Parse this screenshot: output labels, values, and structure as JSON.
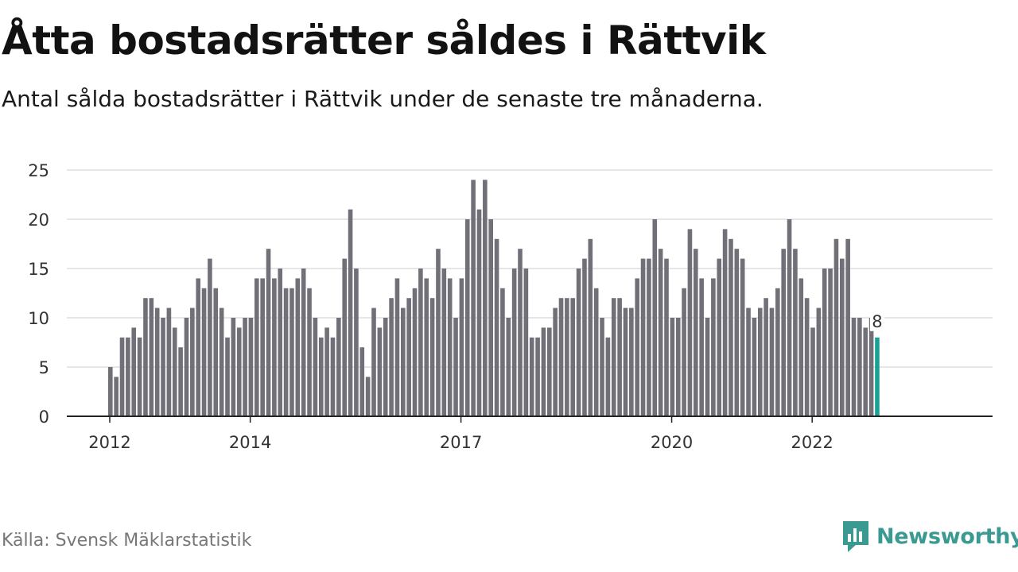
{
  "header": {
    "title": "Åtta bostadsrätter såldes i Rättvik",
    "subtitle": "Antal sålda bostadsrätter i Rättvik under de senaste tre månaderna."
  },
  "footer": {
    "source": "Källa: Svensk Mäklarstatistik",
    "brand": "Newsworthy",
    "brand_icon": "newsworthy-logo-icon"
  },
  "colors": {
    "bar": "#717078",
    "highlight": "#1aa197",
    "grid": "#dddddd",
    "axis": "#222222",
    "brand": "#3a9a92"
  },
  "chart_data": {
    "type": "bar",
    "title": "",
    "xlabel": "",
    "ylabel": "",
    "ylim": [
      0,
      25
    ],
    "yticks": [
      "0",
      "5",
      "10",
      "15",
      "20",
      "25"
    ],
    "xticks": [
      {
        "label": "2012",
        "month_index": 0
      },
      {
        "label": "2014",
        "month_index": 24
      },
      {
        "label": "2017",
        "month_index": 60
      },
      {
        "label": "2020",
        "month_index": 96
      },
      {
        "label": "2022",
        "month_index": 120
      }
    ],
    "grid": true,
    "period": "monthly, Jan 2012 – Oct 2022",
    "values": [
      5,
      4,
      8,
      8,
      9,
      8,
      12,
      12,
      11,
      10,
      11,
      9,
      7,
      10,
      11,
      14,
      13,
      16,
      13,
      11,
      8,
      10,
      9,
      10,
      10,
      14,
      14,
      17,
      14,
      15,
      13,
      13,
      14,
      15,
      13,
      10,
      8,
      9,
      8,
      10,
      16,
      21,
      15,
      7,
      4,
      11,
      9,
      10,
      12,
      14,
      11,
      12,
      13,
      15,
      14,
      12,
      17,
      15,
      14,
      10,
      14,
      20,
      24,
      21,
      24,
      20,
      18,
      13,
      10,
      15,
      17,
      15,
      8,
      8,
      9,
      9,
      11,
      12,
      12,
      12,
      15,
      16,
      18,
      13,
      10,
      8,
      12,
      12,
      11,
      11,
      14,
      16,
      16,
      20,
      17,
      16,
      10,
      10,
      13,
      19,
      17,
      14,
      10,
      14,
      16,
      19,
      18,
      17,
      16,
      11,
      10,
      11,
      12,
      11,
      13,
      17,
      20,
      17,
      14,
      12,
      9,
      11,
      15,
      15,
      18,
      16,
      18,
      10,
      10,
      9,
      10,
      8
    ],
    "highlight_last": true,
    "data_labels": [
      {
        "index": 131,
        "text": "8"
      }
    ]
  }
}
